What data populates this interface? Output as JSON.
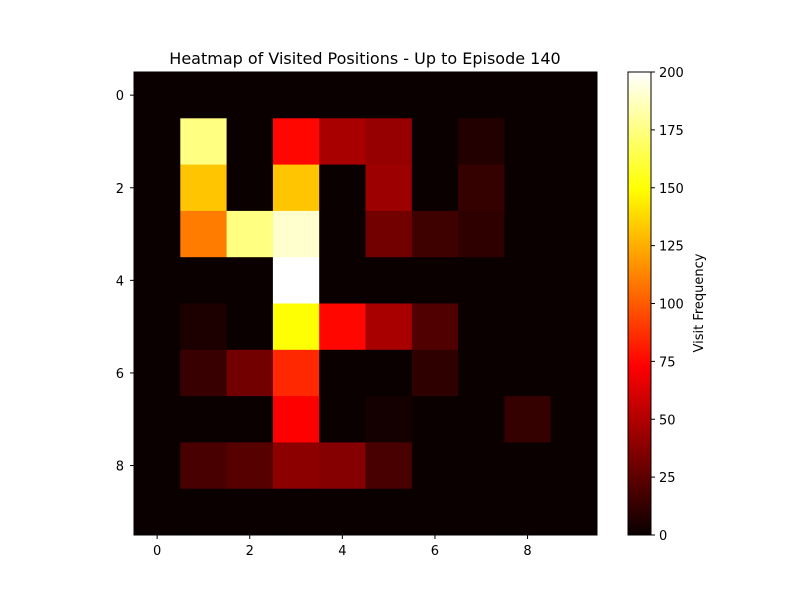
{
  "chart_data": {
    "type": "heatmap",
    "title": "Heatmap of Visited Positions - Up to Episode 140",
    "xlabel": "",
    "ylabel": "",
    "x_ticks": [
      0,
      2,
      4,
      6,
      8
    ],
    "y_ticks": [
      0,
      2,
      4,
      6,
      8
    ],
    "x_range": [
      -0.5,
      9.5
    ],
    "y_range": [
      -0.5,
      9.5
    ],
    "rows": 10,
    "cols": 10,
    "values": [
      [
        0,
        0,
        0,
        0,
        0,
        0,
        0,
        0,
        0,
        0
      ],
      [
        0,
        175,
        0,
        75,
        45,
        40,
        0,
        7,
        0,
        0
      ],
      [
        0,
        132,
        0,
        132,
        0,
        42,
        0,
        12,
        0,
        0
      ],
      [
        0,
        110,
        175,
        190,
        0,
        30,
        15,
        10,
        0,
        0
      ],
      [
        0,
        0,
        0,
        200,
        0,
        0,
        0,
        0,
        0,
        0
      ],
      [
        0,
        5,
        0,
        150,
        75,
        45,
        20,
        0,
        0,
        0
      ],
      [
        0,
        13,
        30,
        85,
        0,
        0,
        10,
        0,
        0,
        0
      ],
      [
        0,
        0,
        0,
        70,
        0,
        3,
        0,
        0,
        12,
        0
      ],
      [
        0,
        18,
        22,
        37,
        35,
        18,
        0,
        0,
        0,
        0
      ],
      [
        0,
        0,
        0,
        0,
        0,
        0,
        0,
        0,
        0,
        0
      ]
    ],
    "colormap": "hot",
    "colorbar": {
      "label": "Visit Frequency",
      "min": 0,
      "max": 200,
      "ticks": [
        0,
        25,
        50,
        75,
        100,
        125,
        150,
        175,
        200
      ]
    },
    "grid": false,
    "legend": "none"
  }
}
